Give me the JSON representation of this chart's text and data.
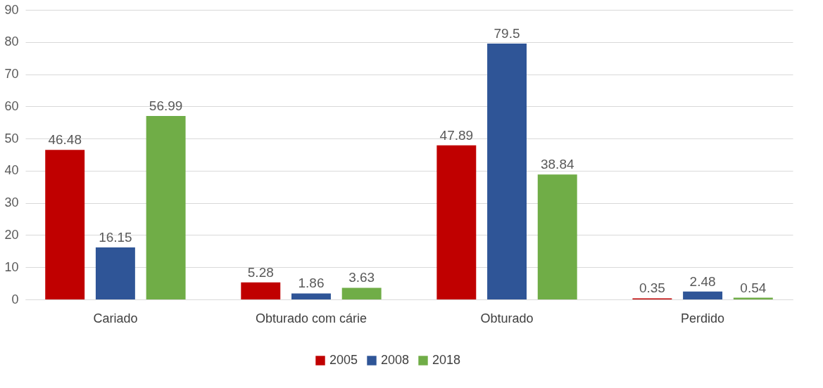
{
  "chart_data": {
    "type": "bar",
    "categories": [
      "Cariado",
      "Obturado com cárie",
      "Obturado",
      "Perdido"
    ],
    "series": [
      {
        "name": "2005",
        "color": "#c00000",
        "values": [
          46.48,
          5.28,
          47.89,
          0.35
        ]
      },
      {
        "name": "2008",
        "color": "#2f5597",
        "values": [
          16.15,
          1.86,
          79.5,
          2.48
        ]
      },
      {
        "name": "2018",
        "color": "#70ad47",
        "values": [
          56.99,
          3.63,
          38.84,
          0.54
        ]
      }
    ],
    "ylim": [
      0,
      90
    ],
    "yticks": [
      0,
      10,
      20,
      30,
      40,
      50,
      60,
      70,
      80,
      90
    ],
    "grid": "y",
    "legend": "bottom",
    "data_labels": true
  }
}
